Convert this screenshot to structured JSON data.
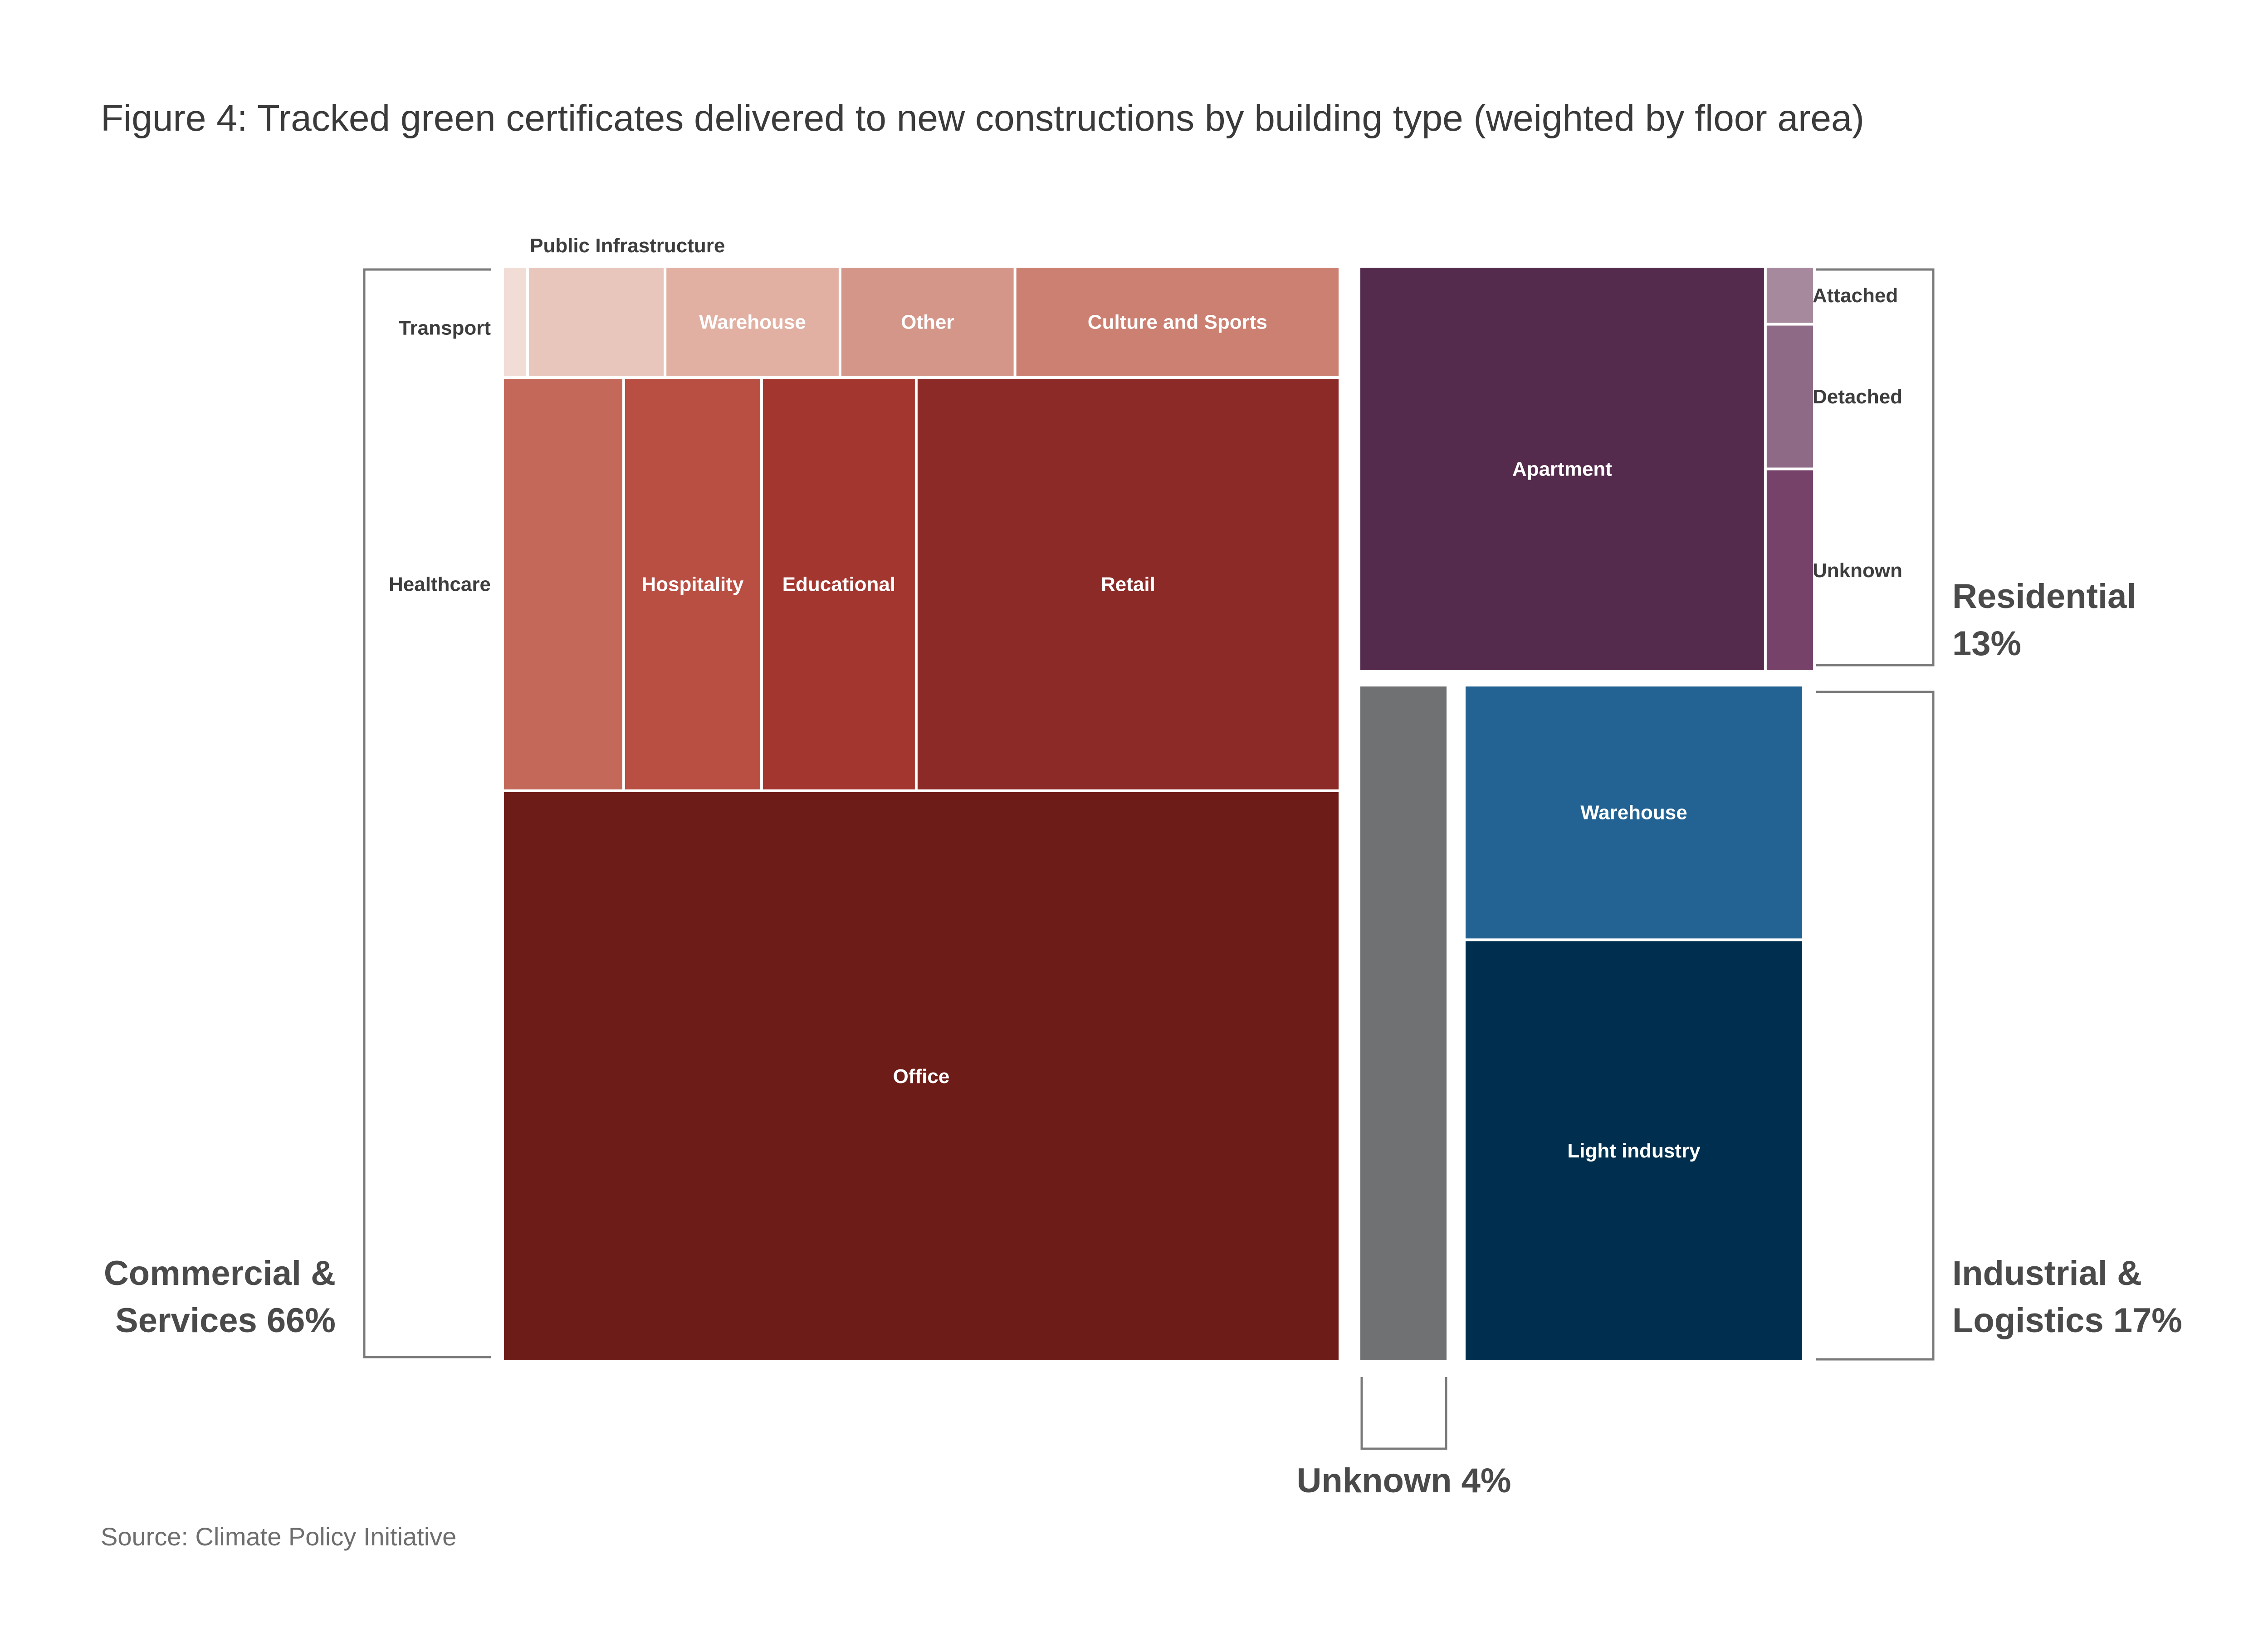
{
  "title": "Figure 4: Tracked green certificates delivered to new constructions by building type (weighted by floor area)",
  "source": "Source: Climate Policy Initiative",
  "chart_data": {
    "type": "treemap",
    "title": "Figure 4: Tracked green certificates delivered to new constructions by building type (weighted by floor area)",
    "value_unit": "%",
    "groups": [
      {
        "key": "commercial",
        "label_lines": [
          "Commercial &",
          "Services 66%"
        ],
        "value": 66,
        "children": [
          {
            "label": "Transport",
            "value": 0.2,
            "color": "#f1dcd6"
          },
          {
            "label": "Public Infrastructure",
            "value": 1.1,
            "color": "#e9c6bb"
          },
          {
            "label": "Warehouse",
            "value": 1.4,
            "color": "#e1b0a3"
          },
          {
            "label": "Other",
            "value": 1.4,
            "color": "#d5968a"
          },
          {
            "label": "Culture and Sports",
            "value": 2.6,
            "color": "#cb8072"
          },
          {
            "label": "Healthcare",
            "value": 3.6,
            "color": "#c4695a"
          },
          {
            "label": "Hospitality",
            "value": 4.1,
            "color": "#b94e42"
          },
          {
            "label": "Educational",
            "value": 4.6,
            "color": "#a43630"
          },
          {
            "label": "Retail",
            "value": 12.6,
            "color": "#8b2a26"
          },
          {
            "label": "Office",
            "value": 34.4,
            "color": "#6e1c17"
          }
        ]
      },
      {
        "key": "residential",
        "label_lines": [
          "Residential",
          "13%"
        ],
        "value": 13,
        "children": [
          {
            "label": "Apartment",
            "value": 11.6,
            "color": "#542b4c"
          },
          {
            "label": "Attached",
            "value": 0.2,
            "color": "#a7899e"
          },
          {
            "label": "Detached",
            "value": 0.5,
            "color": "#8e6a86"
          },
          {
            "label": "Unknown",
            "value": 0.7,
            "color": "#774269"
          }
        ]
      },
      {
        "key": "unknown",
        "label_lines": [
          "Unknown 4%"
        ],
        "value": 4,
        "children": [
          {
            "label": "",
            "value": 4,
            "color": "#707173"
          }
        ]
      },
      {
        "key": "industrial",
        "label_lines": [
          "Industrial &",
          "Logistics 17%"
        ],
        "value": 17,
        "children": [
          {
            "label": "Warehouse",
            "value": 6.4,
            "color": "#226393"
          },
          {
            "label": "Light industry",
            "value": 10.6,
            "color": "#002e4e"
          }
        ]
      }
    ]
  }
}
